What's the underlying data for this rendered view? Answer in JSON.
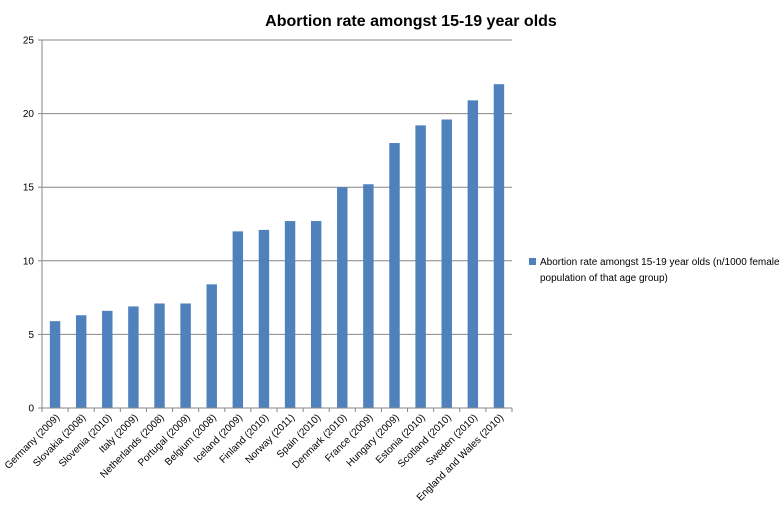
{
  "chart_data": {
    "type": "bar",
    "title": "Abortion rate amongst  15-19 year olds",
    "xlabel": "",
    "ylabel": "",
    "ylim": [
      0,
      25
    ],
    "yticks": [
      "0",
      "5",
      "10",
      "15",
      "20",
      "25"
    ],
    "grid": true,
    "legend_position": "right",
    "categories": [
      "Germany (2009)",
      "Slovakia (2008)",
      "Slovenia (2010)",
      "Italy (2009)",
      "Netherlands (2008)",
      "Portugal (2009)",
      "Belgium (2008)",
      "Iceland (2009)",
      "Finland (2010)",
      "Norway (2011)",
      "Spain (2010)",
      "Denmark (2010)",
      "France (2009)",
      "Hungary (2009)",
      "Estonia (2010)",
      "Scotland (2010)",
      "Sweden (2010)",
      "England and Wales (2010)"
    ],
    "series": [
      {
        "name": "Abortion rate amongst 15-19 year olds (n/1000 female population of that age group)",
        "legend_lines": [
          "Abortion rate amongst 15-19 year olds (n/1000 female",
          "population of that age group)"
        ],
        "color": "#4F81BD",
        "values": [
          5.9,
          6.3,
          6.6,
          6.9,
          7.1,
          7.1,
          8.4,
          12.0,
          12.1,
          12.7,
          12.7,
          15.0,
          15.2,
          18.0,
          19.2,
          19.6,
          20.9,
          22.0
        ]
      }
    ]
  },
  "colors": {
    "bar": "#4F81BD",
    "grid": "#868686",
    "axis": "#868686"
  }
}
